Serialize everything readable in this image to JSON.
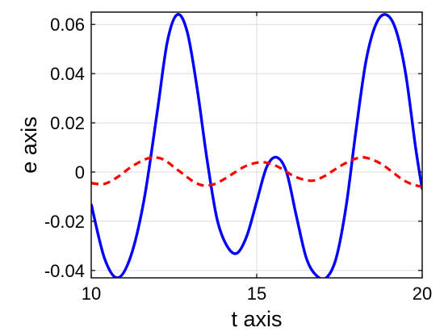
{
  "chart_data": {
    "type": "line",
    "title": "",
    "xlabel": "t axis",
    "ylabel": "e axis",
    "xlim": [
      10,
      20
    ],
    "ylim": [
      -0.043,
      0.065
    ],
    "grid": true,
    "xticks": [
      10,
      15,
      20
    ],
    "xtick_labels": [
      "10",
      "15",
      "20"
    ],
    "yticks": [
      -0.04,
      -0.02,
      0,
      0.02,
      0.04,
      0.06
    ],
    "ytick_labels": [
      "-0.04",
      "-0.02",
      "0",
      "0.02",
      "0.04",
      "0.06"
    ],
    "series": [
      {
        "style": "solid",
        "color": "#0000ff",
        "x": [
          10.0,
          10.4,
          10.8,
          11.2,
          11.6,
          12.0,
          12.3,
          12.6,
          12.9,
          13.2,
          13.5,
          13.8,
          14.1,
          14.4,
          14.7,
          15.0,
          15.3,
          15.6,
          15.9,
          16.2,
          16.5,
          16.8,
          17.1,
          17.4,
          17.7,
          18.0,
          18.3,
          18.6,
          18.9,
          19.2,
          19.5,
          19.8,
          20.0
        ],
        "y": [
          -0.013,
          -0.035,
          -0.043,
          -0.034,
          -0.011,
          0.025,
          0.053,
          0.064,
          0.057,
          0.034,
          0.005,
          -0.019,
          -0.03,
          -0.033,
          -0.026,
          -0.012,
          0.002,
          0.006,
          0.0,
          -0.018,
          -0.035,
          -0.042,
          -0.043,
          -0.035,
          -0.014,
          0.017,
          0.045,
          0.06,
          0.064,
          0.058,
          0.04,
          0.01,
          -0.007
        ]
      },
      {
        "style": "dashed",
        "color": "#ff0000",
        "x": [
          10.0,
          10.4,
          10.8,
          11.2,
          11.6,
          11.9,
          12.2,
          12.5,
          12.8,
          13.1,
          13.4,
          13.7,
          14.0,
          14.3,
          14.6,
          14.9,
          15.2,
          15.5,
          15.8,
          16.1,
          16.4,
          16.7,
          17.0,
          17.3,
          17.6,
          17.9,
          18.2,
          18.5,
          18.8,
          19.1,
          19.4,
          19.7,
          20.0
        ],
        "y": [
          -0.0045,
          -0.0048,
          -0.002,
          0.002,
          0.005,
          0.006,
          0.005,
          0.002,
          -0.001,
          -0.004,
          -0.0055,
          -0.005,
          -0.003,
          -0.0005,
          0.002,
          0.0035,
          0.004,
          0.003,
          0.001,
          -0.0015,
          -0.003,
          -0.0035,
          -0.002,
          0.0005,
          0.003,
          0.005,
          0.006,
          0.005,
          0.003,
          0.0,
          -0.003,
          -0.005,
          -0.006
        ]
      }
    ]
  }
}
